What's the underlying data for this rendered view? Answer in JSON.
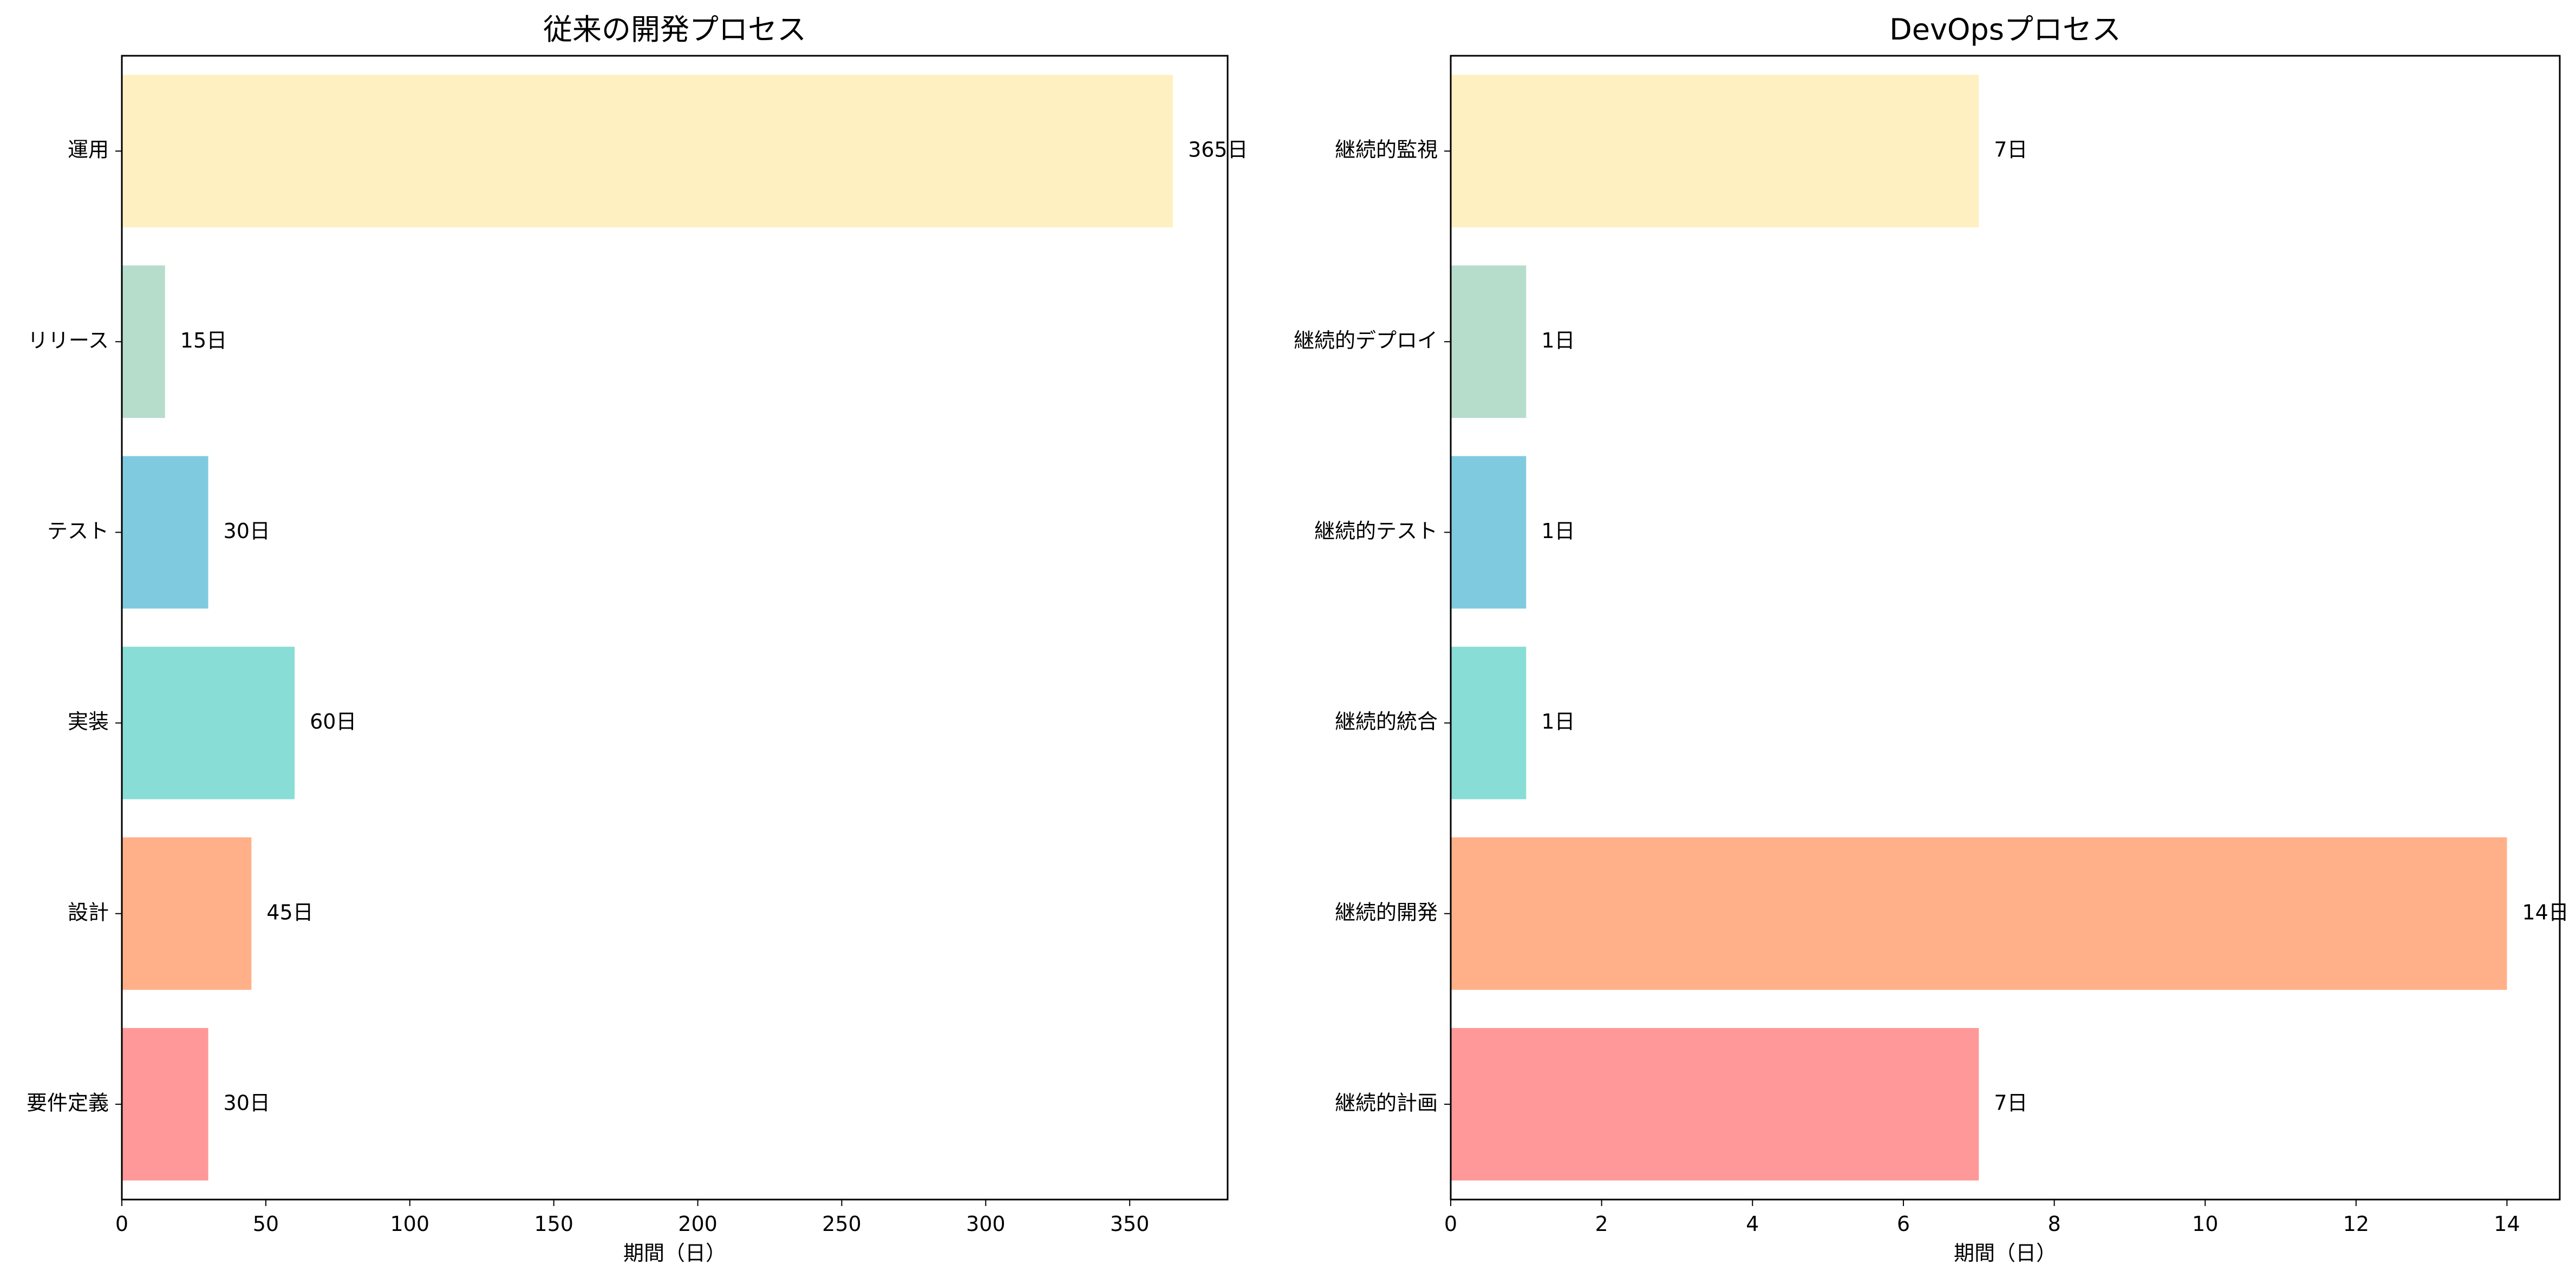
{
  "chart_data": [
    {
      "type": "bar",
      "orientation": "horizontal",
      "title": "従来の開発プロセス",
      "xlabel": "期間（日）",
      "ylabel": "",
      "categories": [
        "要件定義",
        "設計",
        "実装",
        "テスト",
        "リリース",
        "運用"
      ],
      "values": [
        30,
        45,
        60,
        30,
        15,
        365
      ],
      "value_labels": [
        "30日",
        "45日",
        "60日",
        "30日",
        "15日",
        "365日"
      ],
      "colors": [
        "#FF9999",
        "#FFB088",
        "#88DDD6",
        "#80CAE0",
        "#B6DDCB",
        "#FFF0C2"
      ],
      "xlim": [
        0,
        384
      ],
      "xticks": [
        0,
        50,
        100,
        150,
        200,
        250,
        300,
        350
      ],
      "grid": false
    },
    {
      "type": "bar",
      "orientation": "horizontal",
      "title": "DevOpsプロセス",
      "xlabel": "期間（日）",
      "ylabel": "",
      "categories": [
        "継続的計画",
        "継続的開発",
        "継続的統合",
        "継続的テスト",
        "継続的デプロイ",
        "継続的監視"
      ],
      "values": [
        7,
        14,
        1,
        1,
        1,
        7
      ],
      "value_labels": [
        "7日",
        "14日",
        "1日",
        "1日",
        "1日",
        "7日"
      ],
      "colors": [
        "#FF9999",
        "#FFB088",
        "#88DDD6",
        "#80CAE0",
        "#B6DDCB",
        "#FFF0C2"
      ],
      "xlim": [
        0,
        14.7
      ],
      "xticks": [
        0,
        2,
        4,
        6,
        8,
        10,
        12,
        14
      ],
      "grid": false
    }
  ]
}
